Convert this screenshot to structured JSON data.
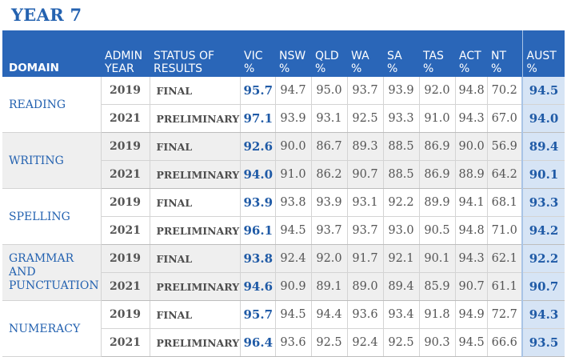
{
  "title": "YEAR 7",
  "headers": {
    "domain": "DOMAIN",
    "year_line1": "ADMIN",
    "year_line2": "YEAR",
    "status_line1": "STATUS OF",
    "status_line2": "RESULTS",
    "vic": "VIC",
    "nsw": "NSW",
    "qld": "QLD",
    "wa": "WA",
    "sa": "SA",
    "tas": "TAS",
    "act": "ACT",
    "nt": "NT",
    "aust": "AUST",
    "pct": "%"
  },
  "groups": [
    {
      "domain": "READING",
      "shade": false,
      "rows": [
        {
          "year": "2019",
          "status": "FINAL",
          "vic": "95.7",
          "nsw": "94.7",
          "qld": "95.0",
          "wa": "93.7",
          "sa": "93.9",
          "tas": "92.0",
          "act": "94.8",
          "nt": "70.2",
          "aust": "94.5"
        },
        {
          "year": "2021",
          "status": "PRELIMINARY",
          "vic": "97.1",
          "nsw": "93.9",
          "qld": "93.1",
          "wa": "92.5",
          "sa": "93.3",
          "tas": "91.0",
          "act": "94.3",
          "nt": "67.0",
          "aust": "94.0"
        }
      ]
    },
    {
      "domain": "WRITING",
      "shade": true,
      "rows": [
        {
          "year": "2019",
          "status": "FINAL",
          "vic": "92.6",
          "nsw": "90.0",
          "qld": "86.7",
          "wa": "89.3",
          "sa": "88.5",
          "tas": "86.9",
          "act": "90.0",
          "nt": "56.9",
          "aust": "89.4"
        },
        {
          "year": "2021",
          "status": "PRELIMINARY",
          "vic": "94.0",
          "nsw": "91.0",
          "qld": "86.2",
          "wa": "90.7",
          "sa": "88.5",
          "tas": "86.9",
          "act": "88.9",
          "nt": "64.2",
          "aust": "90.1"
        }
      ]
    },
    {
      "domain": "SPELLING",
      "shade": false,
      "rows": [
        {
          "year": "2019",
          "status": "FINAL",
          "vic": "93.9",
          "nsw": "93.8",
          "qld": "93.9",
          "wa": "93.1",
          "sa": "92.2",
          "tas": "89.9",
          "act": "94.1",
          "nt": "68.1",
          "aust": "93.3"
        },
        {
          "year": "2021",
          "status": "PRELIMINARY",
          "vic": "96.1",
          "nsw": "94.5",
          "qld": "93.7",
          "wa": "93.7",
          "sa": "93.0",
          "tas": "90.5",
          "act": "94.8",
          "nt": "71.0",
          "aust": "94.2"
        }
      ]
    },
    {
      "domain": "GRAMMAR AND PUNCTUATION",
      "shade": true,
      "rows": [
        {
          "year": "2019",
          "status": "FINAL",
          "vic": "93.8",
          "nsw": "92.4",
          "qld": "92.0",
          "wa": "91.7",
          "sa": "92.1",
          "tas": "90.1",
          "act": "94.3",
          "nt": "62.1",
          "aust": "92.2"
        },
        {
          "year": "2021",
          "status": "PRELIMINARY",
          "vic": "94.6",
          "nsw": "90.9",
          "qld": "89.1",
          "wa": "89.0",
          "sa": "89.4",
          "tas": "85.9",
          "act": "90.7",
          "nt": "61.1",
          "aust": "90.7"
        }
      ]
    },
    {
      "domain": "NUMERACY",
      "shade": false,
      "rows": [
        {
          "year": "2019",
          "status": "FINAL",
          "vic": "95.7",
          "nsw": "94.5",
          "qld": "94.4",
          "wa": "93.6",
          "sa": "93.4",
          "tas": "91.8",
          "act": "94.9",
          "nt": "72.7",
          "aust": "94.3"
        },
        {
          "year": "2021",
          "status": "PRELIMINARY",
          "vic": "96.4",
          "nsw": "93.6",
          "qld": "92.5",
          "wa": "92.4",
          "sa": "92.5",
          "tas": "90.3",
          "act": "94.5",
          "nt": "66.6",
          "aust": "93.5"
        }
      ]
    }
  ]
}
